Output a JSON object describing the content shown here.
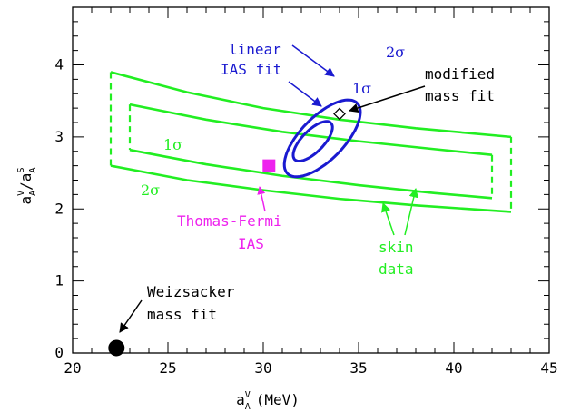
{
  "colors": {
    "axis": "#000000",
    "skin": "#22ee22",
    "ias": "#1a1ad0",
    "thomas_fermi": "#ee22ee",
    "annot": "#000000"
  },
  "chart_data": {
    "type": "scatter",
    "title": "",
    "xlabel_main": "a",
    "xlabel_sup": "V",
    "xlabel_sub": "A",
    "xlabel_unit": "(MeV)",
    "ylabel_a": "a",
    "ylabel_a_sup": "V",
    "ylabel_a_sub": "A",
    "ylabel_slash": "/",
    "ylabel_b": "a",
    "ylabel_b_sup": "S",
    "ylabel_b_sub": "A",
    "xlim": [
      20,
      45
    ],
    "ylim": [
      0,
      4.8
    ],
    "x_ticks": [
      20,
      25,
      30,
      35,
      40,
      45
    ],
    "y_ticks": [
      0,
      1,
      2,
      3,
      4
    ],
    "skin_bands": [
      {
        "label": "1σ",
        "upper": [
          [
            23,
            3.45
          ],
          [
            27,
            3.24
          ],
          [
            31,
            3.07
          ],
          [
            35,
            2.94
          ],
          [
            39,
            2.83
          ],
          [
            42,
            2.75
          ]
        ],
        "lower": [
          [
            23,
            2.82
          ],
          [
            27,
            2.62
          ],
          [
            31,
            2.46
          ],
          [
            35,
            2.33
          ],
          [
            39,
            2.22
          ],
          [
            42,
            2.15
          ]
        ]
      },
      {
        "label": "2σ",
        "upper": [
          [
            22,
            3.9
          ],
          [
            26,
            3.62
          ],
          [
            30,
            3.4
          ],
          [
            34,
            3.24
          ],
          [
            38,
            3.12
          ],
          [
            43,
            3.0
          ]
        ],
        "lower": [
          [
            22,
            2.6
          ],
          [
            26,
            2.4
          ],
          [
            30,
            2.26
          ],
          [
            34,
            2.14
          ],
          [
            38,
            2.05
          ],
          [
            43,
            1.96
          ]
        ]
      }
    ],
    "ias_ellipses": [
      {
        "label": "1σ",
        "cx": 32.6,
        "cy": 2.94,
        "rx": 2.7,
        "ry": 0.3,
        "angle_deg": -45.5
      },
      {
        "label": "2σ",
        "cx": 33.1,
        "cy": 2.98,
        "rx": 5.2,
        "ry": 0.6,
        "angle_deg": -45.5
      }
    ],
    "points": [
      {
        "name": "modified mass fit",
        "x": 34.0,
        "y": 3.32,
        "marker": "open-diamond"
      },
      {
        "name": "Thomas-Fermi IAS",
        "x": 30.3,
        "y": 2.6,
        "marker": "filled-square"
      },
      {
        "name": "Weizsacker mass fit",
        "x": 22.3,
        "y": 0.07,
        "marker": "filled-circle"
      }
    ],
    "annotations": {
      "linear_line1": "linear",
      "linear_line2": "IAS fit",
      "modified_line1": "modified",
      "modified_line2": "mass fit",
      "tf_line1": "Thomas-Fermi",
      "tf_line2": "IAS",
      "skin_line1": "skin",
      "skin_line2": "data",
      "weiz_line1": "Weizsacker",
      "weiz_line2": "mass fit",
      "skin_1sigma": "1σ",
      "skin_2sigma": "2σ",
      "ias_1sigma": "1σ",
      "ias_2sigma": "2σ"
    }
  }
}
